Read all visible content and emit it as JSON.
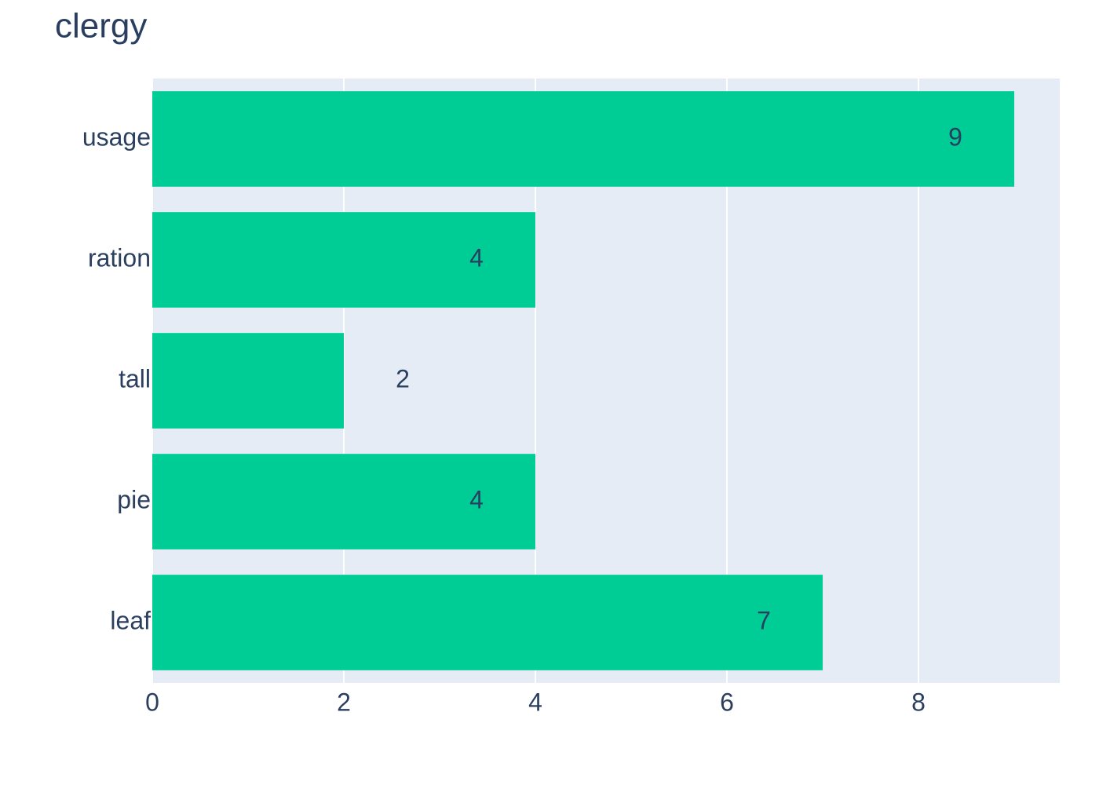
{
  "chart_data": {
    "type": "hbar",
    "title": "clergy",
    "categories": [
      "usage",
      "ration",
      "tall",
      "pie",
      "leaf"
    ],
    "values": [
      9,
      4,
      2,
      4,
      7
    ],
    "color": "#00cc96",
    "xlim": [
      0,
      9.475
    ],
    "xticks": [
      0,
      2,
      4,
      6,
      8
    ],
    "grid": true
  }
}
